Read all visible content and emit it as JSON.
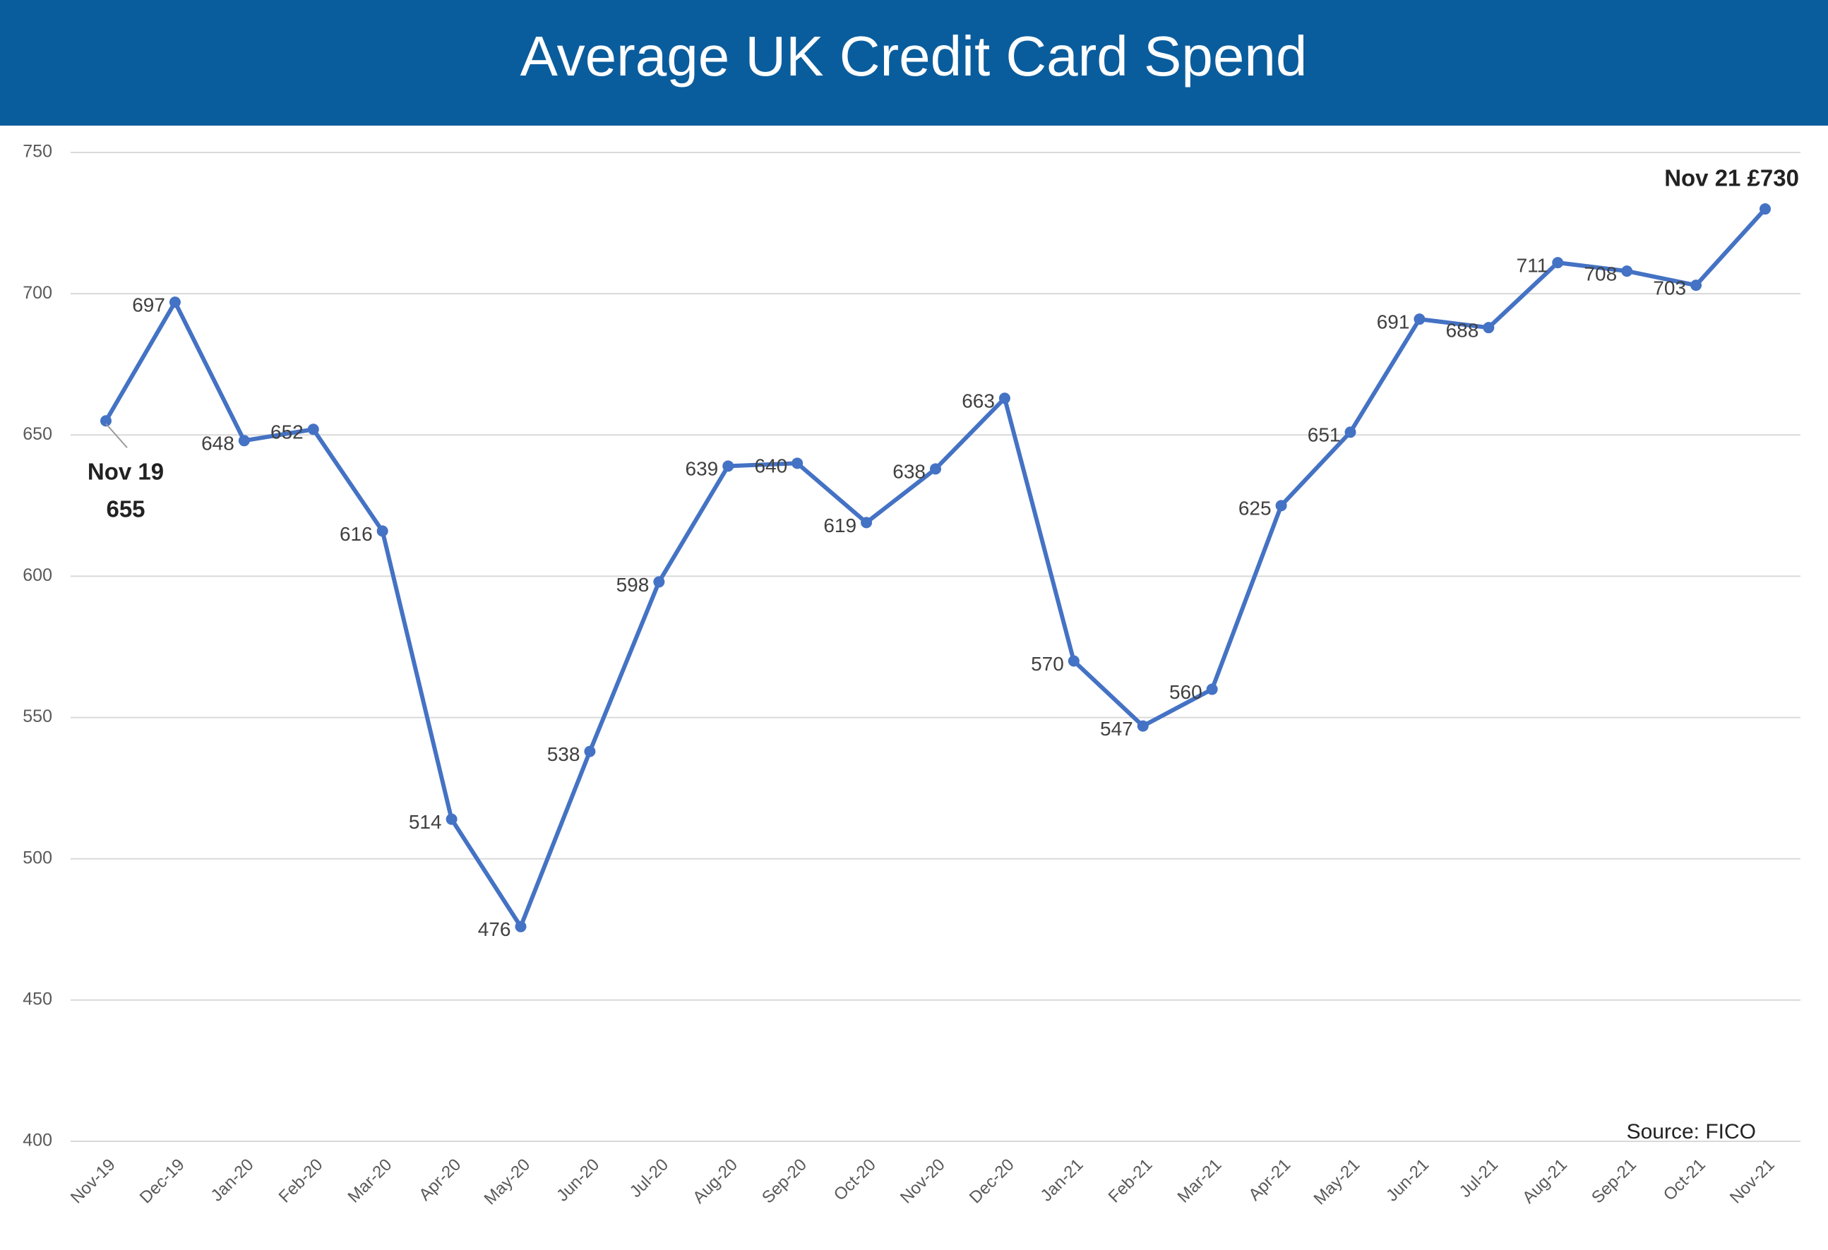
{
  "chart_data": {
    "type": "line",
    "title": "Average UK Credit Card Spend",
    "categories": [
      "Nov-19",
      "Dec-19",
      "Jan-20",
      "Feb-20",
      "Mar-20",
      "Apr-20",
      "May-20",
      "Jun-20",
      "Jul-20",
      "Aug-20",
      "Sep-20",
      "Oct-20",
      "Nov-20",
      "Dec-20",
      "Jan-21",
      "Feb-21",
      "Mar-21",
      "Apr-21",
      "May-21",
      "Jun-21",
      "Jul-21",
      "Aug-21",
      "Sep-21",
      "Oct-21",
      "Nov-21"
    ],
    "series": [
      {
        "color": "#4472c4",
        "values": [
          655,
          697,
          648,
          652,
          616,
          514,
          476,
          538,
          598,
          639,
          640,
          619,
          638,
          663,
          570,
          547,
          560,
          625,
          651,
          691,
          688,
          711,
          708,
          703,
          730
        ]
      }
    ],
    "ylim": [
      400,
      750
    ],
    "yticks": [
      400,
      450,
      500,
      550,
      600,
      650,
      700,
      750
    ],
    "grid": true,
    "annotations": [
      "Nov 19",
      "655",
      "Nov 21 £730"
    ],
    "source": "Source: FICO"
  }
}
